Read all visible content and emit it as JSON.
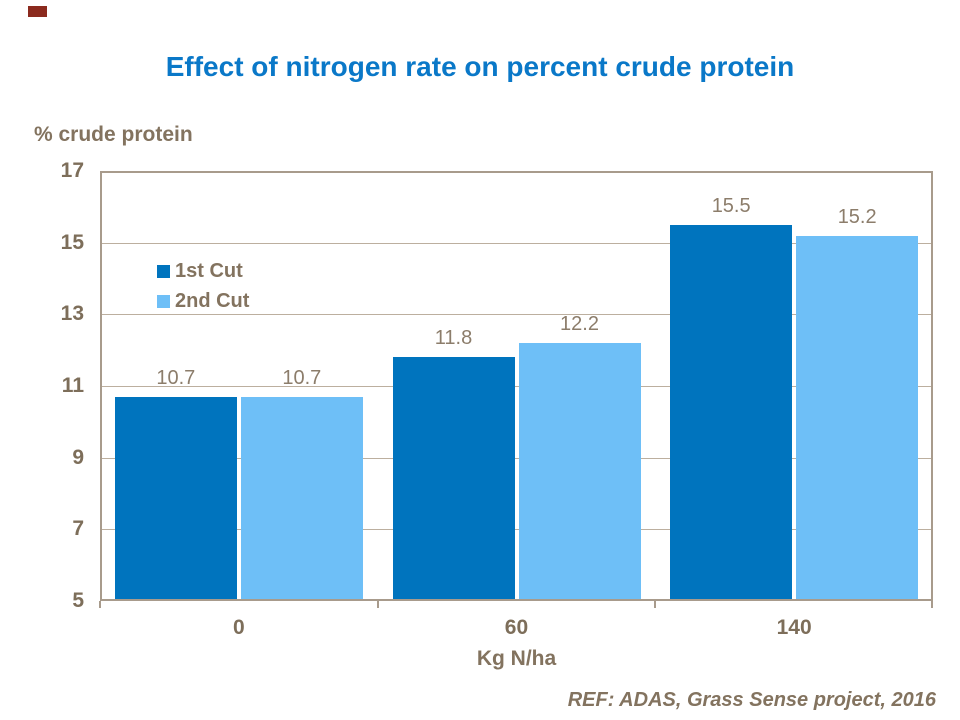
{
  "slide": {
    "footer": "REF: ADAS, Grass Sense project, 2016",
    "accent_mark_color": "#8B2A1E",
    "background_color": "#FFFFFF"
  },
  "colors": {
    "title_blue": "#0A78C8",
    "axis_text_brown": "#7D6E5A",
    "label_brown": "#83735F",
    "value_label_brown": "#8C7D6B",
    "gridline": "#BCAF9F",
    "plot_frame": "#A89B8C",
    "series_1_dark_blue": "#0074BE",
    "series_2_light_blue": "#6EBFF7"
  },
  "chart_data": {
    "type": "bar",
    "title": "Effect of nitrogen rate on percent crude protein",
    "ylabel": "% crude protein",
    "xlabel": "Kg N/ha",
    "categories": [
      "0",
      "60",
      "140"
    ],
    "series": [
      {
        "name": "1st Cut",
        "color": "#0074BE",
        "values": [
          10.7,
          11.8,
          15.5
        ]
      },
      {
        "name": "2nd Cut",
        "color": "#6EBFF7",
        "values": [
          10.7,
          12.2,
          15.2
        ]
      }
    ],
    "data_labels": [
      "10.7",
      "10.7",
      "11.8",
      "12.2",
      "15.5",
      "15.2"
    ],
    "ylim": [
      5,
      17
    ],
    "yticks": [
      5,
      7,
      9,
      11,
      13,
      15,
      17
    ],
    "grid": true,
    "legend_position": "inside-top-left",
    "legend_entries": [
      "1st Cut",
      "2nd Cut"
    ]
  }
}
